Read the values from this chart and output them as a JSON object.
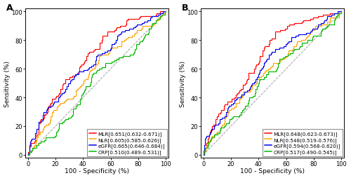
{
  "panel_A": {
    "title": "A",
    "curves": [
      {
        "label": "MLR[0.651(0.632-0.671)]",
        "color": "#FF0000",
        "auc": 0.651,
        "seed": 1
      },
      {
        "label": "NLR[0.605(0.585-0.626)]",
        "color": "#FFA500",
        "auc": 0.605,
        "seed": 2
      },
      {
        "label": "eGFR[0.665(0.646-0.684)]",
        "color": "#0000EE",
        "auc": 0.665,
        "seed": 3
      },
      {
        "label": "CRP[0.510(0.489-0.531)]",
        "color": "#00BB00",
        "auc": 0.51,
        "seed": 4
      }
    ]
  },
  "panel_B": {
    "title": "B",
    "curves": [
      {
        "label": "MLR[0.648(0.623-0.673)]",
        "color": "#FF0000",
        "auc": 0.648,
        "seed": 5
      },
      {
        "label": "NLR[0.548(0.519-0.576)]",
        "color": "#FFA500",
        "auc": 0.548,
        "seed": 6
      },
      {
        "label": "eGFR[0.594(0.568-0.620)]",
        "color": "#0000EE",
        "auc": 0.594,
        "seed": 7
      },
      {
        "label": "CRP[0.517(0.490-0.545)]",
        "color": "#00BB00",
        "auc": 0.517,
        "seed": 8
      }
    ]
  },
  "xlabel": "100 - Specificity (%)",
  "ylabel": "Sensitivity (%)",
  "bg_color": "#FFFFFF",
  "legend_fontsize": 5.2,
  "axis_fontsize": 6.5,
  "title_fontsize": 9,
  "tick_fontsize": 6
}
